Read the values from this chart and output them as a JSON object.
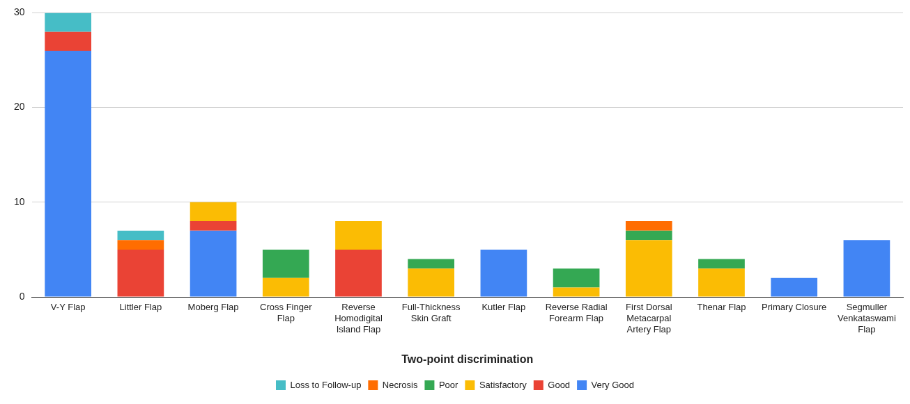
{
  "chart_data": {
    "type": "bar",
    "stacked": true,
    "xlabel": "Two-point discrimination",
    "categories": [
      "V-Y Flap",
      "Littler Flap",
      "Moberg Flap",
      "Cross Finger Flap",
      "Reverse Homodigital Island Flap",
      "Full-Thickness Skin Graft",
      "Kutler Flap",
      "Reverse Radial Forearm Flap",
      "First Dorsal Metacarpal Artery Flap",
      "Thenar Flap",
      "Primary Closure",
      "Segmuller Venkataswami Flap"
    ],
    "series": [
      {
        "name": "Very Good",
        "color": "#4285f4",
        "values": [
          26,
          0,
          7,
          0,
          0,
          0,
          5,
          0,
          0,
          0,
          2,
          6
        ]
      },
      {
        "name": "Good",
        "color": "#ea4335",
        "values": [
          2,
          5,
          1,
          0,
          5,
          0,
          0,
          0,
          0,
          0,
          0,
          0
        ]
      },
      {
        "name": "Satisfactory",
        "color": "#fbbc04",
        "values": [
          0,
          0,
          2,
          2,
          3,
          3,
          0,
          1,
          6,
          3,
          0,
          0
        ]
      },
      {
        "name": "Poor",
        "color": "#34a853",
        "values": [
          0,
          0,
          0,
          3,
          0,
          1,
          0,
          2,
          1,
          1,
          0,
          0
        ]
      },
      {
        "name": "Necrosis",
        "color": "#ff6d01",
        "values": [
          0,
          1,
          0,
          0,
          0,
          0,
          0,
          0,
          1,
          0,
          0,
          0
        ]
      },
      {
        "name": "Loss to Follow-up",
        "color": "#46bdc6",
        "values": [
          2,
          1,
          0,
          0,
          0,
          0,
          0,
          0,
          0,
          0,
          0,
          0
        ]
      }
    ],
    "ylim": [
      0,
      30
    ],
    "yticks": [
      0,
      10,
      20,
      30
    ],
    "grid": "y",
    "legend": "bottom"
  }
}
